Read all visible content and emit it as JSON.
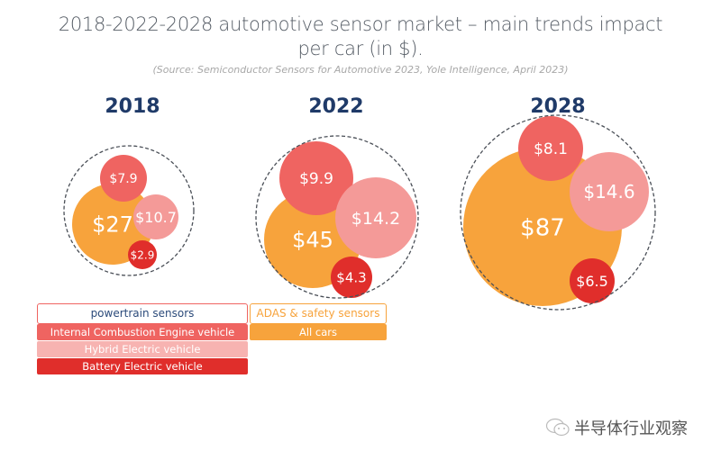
{
  "title_line1": "2018-2022-2028 automotive sensor market – main trends impact",
  "title_line2": "per car (in $).",
  "source": "(Source: Semiconductor Sensors for Automotive 2023, Yole Intelligence, April 2023)",
  "colors": {
    "year_label": "#1f3a68",
    "all_cars": "#f7a33c",
    "ice": "#ef6461",
    "hybrid": "#f49a98",
    "bev": "#e02e2b",
    "outline": "#4a4f57"
  },
  "chart_data": {
    "type": "bubble",
    "title": "2018-2022-2028 automotive sensor market – main trends impact per car (in $).",
    "subtitle": "(Source: Semiconductor Sensors for Automotive 2023, Yole Intelligence, April 2023)",
    "unit": "$ per car",
    "years": [
      {
        "year": "2018",
        "bubbles": [
          {
            "category": "All cars",
            "group": "ADAS & safety sensors",
            "value": 27,
            "label": "$27"
          },
          {
            "category": "Internal Combustion Engine vehicle",
            "group": "powertrain sensors",
            "value": 7.9,
            "label": "$7.9"
          },
          {
            "category": "Hybrid Electric vehicle",
            "group": "powertrain sensors",
            "value": 10.7,
            "label": "$10.7"
          },
          {
            "category": "Battery Electric vehicle",
            "group": "powertrain sensors",
            "value": 2.9,
            "label": "$2.9"
          }
        ]
      },
      {
        "year": "2022",
        "bubbles": [
          {
            "category": "All cars",
            "group": "ADAS & safety sensors",
            "value": 45,
            "label": "$45"
          },
          {
            "category": "Internal Combustion Engine vehicle",
            "group": "powertrain sensors",
            "value": 9.9,
            "label": "$9.9"
          },
          {
            "category": "Hybrid Electric vehicle",
            "group": "powertrain sensors",
            "value": 14.2,
            "label": "$14.2"
          },
          {
            "category": "Battery Electric vehicle",
            "group": "powertrain sensors",
            "value": 4.3,
            "label": "$4.3"
          }
        ]
      },
      {
        "year": "2028",
        "bubbles": [
          {
            "category": "All cars",
            "group": "ADAS & safety sensors",
            "value": 87,
            "label": "$87"
          },
          {
            "category": "Internal Combustion Engine vehicle",
            "group": "powertrain sensors",
            "value": 8.1,
            "label": "$8.1"
          },
          {
            "category": "Hybrid Electric vehicle",
            "group": "powertrain sensors",
            "value": 14.6,
            "label": "$14.6"
          },
          {
            "category": "Battery Electric vehicle",
            "group": "powertrain sensors",
            "value": 6.5,
            "label": "$6.5"
          }
        ]
      }
    ]
  },
  "legend": {
    "powertrain": {
      "header": "powertrain sensors",
      "items": [
        "Internal Combustion Engine vehicle",
        "Hybrid Electric vehicle",
        "Battery Electric vehicle"
      ]
    },
    "adas": {
      "header": "ADAS & safety sensors",
      "items": [
        "All cars"
      ]
    }
  },
  "watermark": {
    "icon": "wechat-icon",
    "text": "半导体行业观察"
  }
}
